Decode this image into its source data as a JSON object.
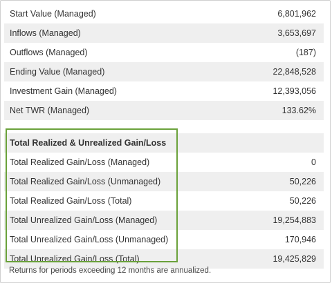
{
  "summary_rows": [
    {
      "label": "Start Value (Managed)",
      "value": "6,801,962"
    },
    {
      "label": "Inflows (Managed)",
      "value": "3,653,697"
    },
    {
      "label": "Outflows (Managed)",
      "value": "(187)"
    },
    {
      "label": "Ending Value (Managed)",
      "value": "22,848,528"
    },
    {
      "label": "Investment Gain (Managed)",
      "value": "12,393,056"
    },
    {
      "label": "Net TWR (Managed)",
      "value": "133.62%"
    }
  ],
  "gain_loss_section": {
    "title": "Total Realized & Unrealized Gain/Loss",
    "rows": [
      {
        "label": "Total Realized Gain/Loss (Managed)",
        "value": "0"
      },
      {
        "label": "Total Realized Gain/Loss (Unmanaged)",
        "value": "50,226"
      },
      {
        "label": "Total Realized Gain/Loss (Total)",
        "value": "50,226"
      },
      {
        "label": "Total Unrealized Gain/Loss (Managed)",
        "value": "19,254,883"
      },
      {
        "label": "Total Unrealized Gain/Loss (Unmanaged)",
        "value": "170,946"
      },
      {
        "label": "Total Unrealized Gain/Loss (Total)",
        "value": "19,425,829"
      }
    ]
  },
  "footnote": "Returns for periods exceeding 12 months are annualized.",
  "colors": {
    "highlight_border": "#6aa13a",
    "row_shade": "#efefef"
  }
}
